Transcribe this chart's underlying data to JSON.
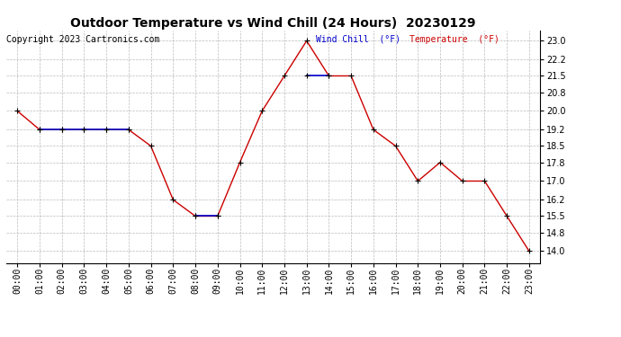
{
  "title": "Outdoor Temperature vs Wind Chill (24 Hours)  20230129",
  "copyright": "Copyright 2023 Cartronics.com",
  "legend_wind_chill": "Wind Chill  (°F)",
  "legend_temperature": "Temperature  (°F)",
  "hours": [
    "00:00",
    "01:00",
    "02:00",
    "03:00",
    "04:00",
    "05:00",
    "06:00",
    "07:00",
    "08:00",
    "09:00",
    "10:00",
    "11:00",
    "12:00",
    "13:00",
    "14:00",
    "15:00",
    "16:00",
    "17:00",
    "18:00",
    "19:00",
    "20:00",
    "21:00",
    "22:00",
    "23:00"
  ],
  "temperature": [
    20.0,
    19.2,
    19.2,
    19.2,
    19.2,
    19.2,
    18.5,
    16.2,
    15.5,
    15.5,
    17.8,
    20.0,
    21.5,
    23.0,
    21.5,
    21.5,
    19.2,
    18.5,
    17.0,
    17.8,
    17.0,
    17.0,
    15.5,
    14.0
  ],
  "wind_chill": [
    null,
    19.2,
    19.2,
    19.2,
    19.2,
    19.2,
    null,
    null,
    15.5,
    15.5,
    null,
    null,
    null,
    21.5,
    21.5,
    null,
    null,
    null,
    null,
    null,
    null,
    null,
    null,
    null
  ],
  "ylim_min": 13.5,
  "ylim_max": 23.45,
  "yticks": [
    14.0,
    14.8,
    15.5,
    16.2,
    17.0,
    17.8,
    18.5,
    19.2,
    20.0,
    20.8,
    21.5,
    22.2,
    23.0
  ],
  "temp_color": "#cc0000",
  "wind_chill_color": "#0000cc",
  "background_color": "#ffffff",
  "grid_color": "#bbbbbb",
  "title_fontsize": 10,
  "axis_fontsize": 7,
  "copyright_fontsize": 7
}
